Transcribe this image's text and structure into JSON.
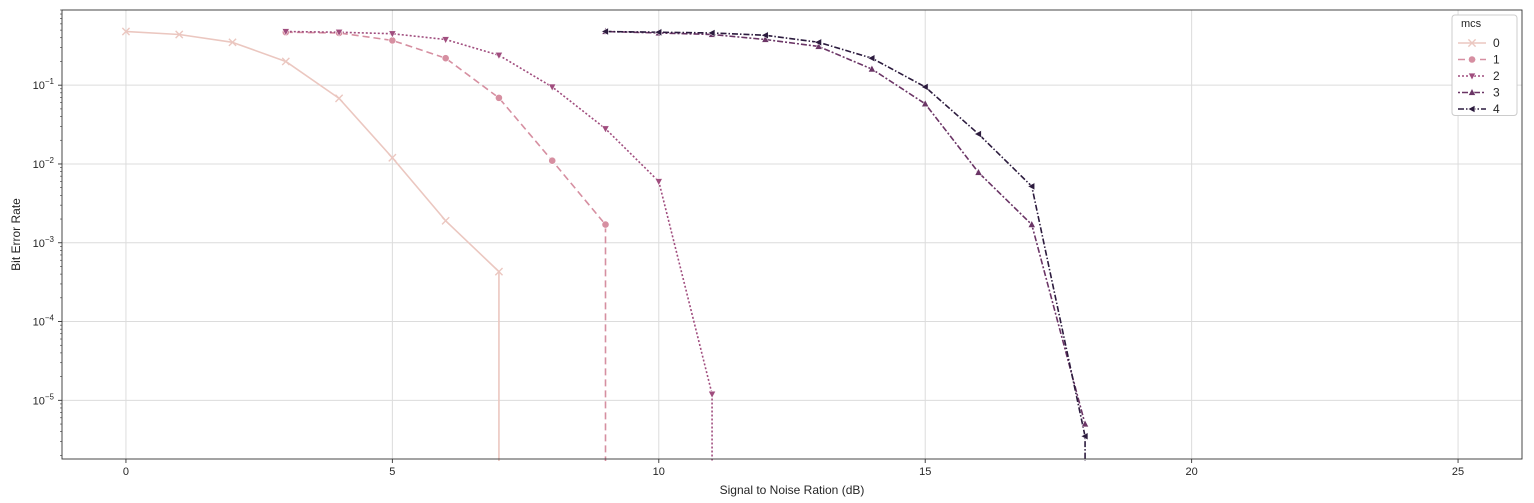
{
  "chart_data": {
    "type": "line",
    "xlabel": "Signal to Noise Ration (dB)",
    "ylabel": "Bit Error Rate",
    "xlim": [
      -1.2,
      26.2
    ],
    "ylim": [
      1.8e-06,
      0.9
    ],
    "yscale": "log",
    "xticks": [
      0,
      5,
      10,
      15,
      20,
      25
    ],
    "yticks": [
      {
        "value": 1e-05,
        "base": "10",
        "exp": "−5"
      },
      {
        "value": 0.0001,
        "base": "10",
        "exp": "−4"
      },
      {
        "value": 0.001,
        "base": "10",
        "exp": "−3"
      },
      {
        "value": 0.01,
        "base": "10",
        "exp": "−2"
      },
      {
        "value": 0.1,
        "base": "10",
        "exp": "−1"
      }
    ],
    "grid": true,
    "legend": {
      "title": "mcs",
      "position": "top-right"
    },
    "series": [
      {
        "name": "0",
        "color": "#ebc7c0",
        "dash": "",
        "marker": "x",
        "x": [
          0,
          1,
          2,
          3,
          4,
          5,
          6,
          7
        ],
        "y": [
          0.48,
          0.44,
          0.35,
          0.2,
          0.068,
          0.012,
          0.0019,
          0.00043
        ],
        "drop_to_floor_at": 7
      },
      {
        "name": "1",
        "color": "#d68fa1",
        "dash": "7,4",
        "marker": "circle",
        "x": [
          3,
          4,
          5,
          6,
          7,
          8,
          9
        ],
        "y": [
          0.47,
          0.46,
          0.37,
          0.22,
          0.069,
          0.011,
          0.0017
        ],
        "drop_to_floor_at": 9
      },
      {
        "name": "2",
        "color": "#a04d7e",
        "dash": "2,2",
        "marker": "triangle-down",
        "x": [
          3,
          4,
          5,
          6,
          7,
          8,
          9,
          10,
          11
        ],
        "y": [
          0.48,
          0.47,
          0.45,
          0.38,
          0.24,
          0.095,
          0.028,
          0.006,
          1.2e-05
        ],
        "drop_to_floor_at": 11
      },
      {
        "name": "3",
        "color": "#6b3566",
        "dash": "2,2,6,2",
        "marker": "triangle-up",
        "x": [
          9,
          10,
          11,
          12,
          13,
          14,
          15,
          16,
          17,
          18
        ],
        "y": [
          0.48,
          0.46,
          0.44,
          0.38,
          0.31,
          0.16,
          0.058,
          0.0078,
          0.0017,
          5e-06
        ],
        "drop_to_floor_at": null
      },
      {
        "name": "4",
        "color": "#2c1b3e",
        "dash": "6,2,1.5,2",
        "marker": "triangle-left",
        "x": [
          9,
          10,
          11,
          12,
          13,
          14,
          15,
          16,
          17,
          18
        ],
        "y": [
          0.48,
          0.47,
          0.46,
          0.43,
          0.35,
          0.22,
          0.095,
          0.024,
          0.0052,
          3.5e-06
        ],
        "drop_to_floor_at": 18
      }
    ]
  }
}
